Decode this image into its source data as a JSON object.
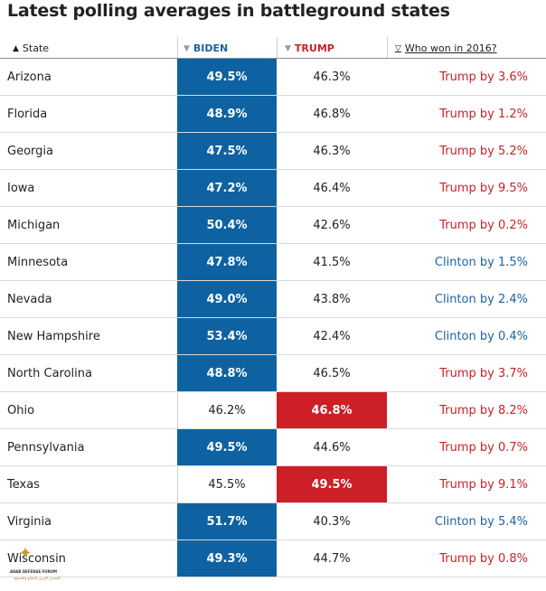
{
  "title": "Latest polling averages in battleground states",
  "headers": {
    "state": "State",
    "biden": "BIDEN",
    "trump": "TRUMP",
    "won": "Who won in 2016?",
    "sort_asc_icon": "▲",
    "sort_neutral_icon": "▼",
    "sort_hollow_icon": "▽"
  },
  "colors": {
    "biden_fill": "#0e62a1",
    "trump_fill": "#cc1f26",
    "trump_text": "#c8232a",
    "clinton_text": "#1a64a0"
  },
  "rows": [
    {
      "state": "Arizona",
      "biden": "49.5%",
      "trump": "46.3%",
      "won": "Trump by 3.6%",
      "lead": "biden",
      "winner": "trump"
    },
    {
      "state": "Florida",
      "biden": "48.9%",
      "trump": "46.8%",
      "won": "Trump by 1.2%",
      "lead": "biden",
      "winner": "trump"
    },
    {
      "state": "Georgia",
      "biden": "47.5%",
      "trump": "46.3%",
      "won": "Trump by 5.2%",
      "lead": "biden",
      "winner": "trump"
    },
    {
      "state": "Iowa",
      "biden": "47.2%",
      "trump": "46.4%",
      "won": "Trump by 9.5%",
      "lead": "biden",
      "winner": "trump"
    },
    {
      "state": "Michigan",
      "biden": "50.4%",
      "trump": "42.6%",
      "won": "Trump by 0.2%",
      "lead": "biden",
      "winner": "trump"
    },
    {
      "state": "Minnesota",
      "biden": "47.8%",
      "trump": "41.5%",
      "won": "Clinton by 1.5%",
      "lead": "biden",
      "winner": "clinton"
    },
    {
      "state": "Nevada",
      "biden": "49.0%",
      "trump": "43.8%",
      "won": "Clinton by 2.4%",
      "lead": "biden",
      "winner": "clinton"
    },
    {
      "state": "New Hampshire",
      "biden": "53.4%",
      "trump": "42.4%",
      "won": "Clinton by 0.4%",
      "lead": "biden",
      "winner": "clinton"
    },
    {
      "state": "North Carolina",
      "biden": "48.8%",
      "trump": "46.5%",
      "won": "Trump by 3.7%",
      "lead": "biden",
      "winner": "trump"
    },
    {
      "state": "Ohio",
      "biden": "46.2%",
      "trump": "46.8%",
      "won": "Trump by 8.2%",
      "lead": "trump",
      "winner": "trump"
    },
    {
      "state": "Pennsylvania",
      "biden": "49.5%",
      "trump": "44.6%",
      "won": "Trump by 0.7%",
      "lead": "biden",
      "winner": "trump"
    },
    {
      "state": "Texas",
      "biden": "45.5%",
      "trump": "49.5%",
      "won": "Trump by 9.1%",
      "lead": "trump",
      "winner": "trump"
    },
    {
      "state": "Virginia",
      "biden": "51.7%",
      "trump": "40.3%",
      "won": "Clinton by 5.4%",
      "lead": "biden",
      "winner": "clinton"
    },
    {
      "state": "Wisconsin",
      "biden": "49.3%",
      "trump": "44.7%",
      "won": "Trump by 0.8%",
      "lead": "biden",
      "winner": "trump"
    }
  ],
  "watermark": {
    "icon": "winged-shield-logo",
    "line1": "ARAB DEFENSE FORUM",
    "line2": "المنتدى العربي للدفاع والتسليح"
  }
}
